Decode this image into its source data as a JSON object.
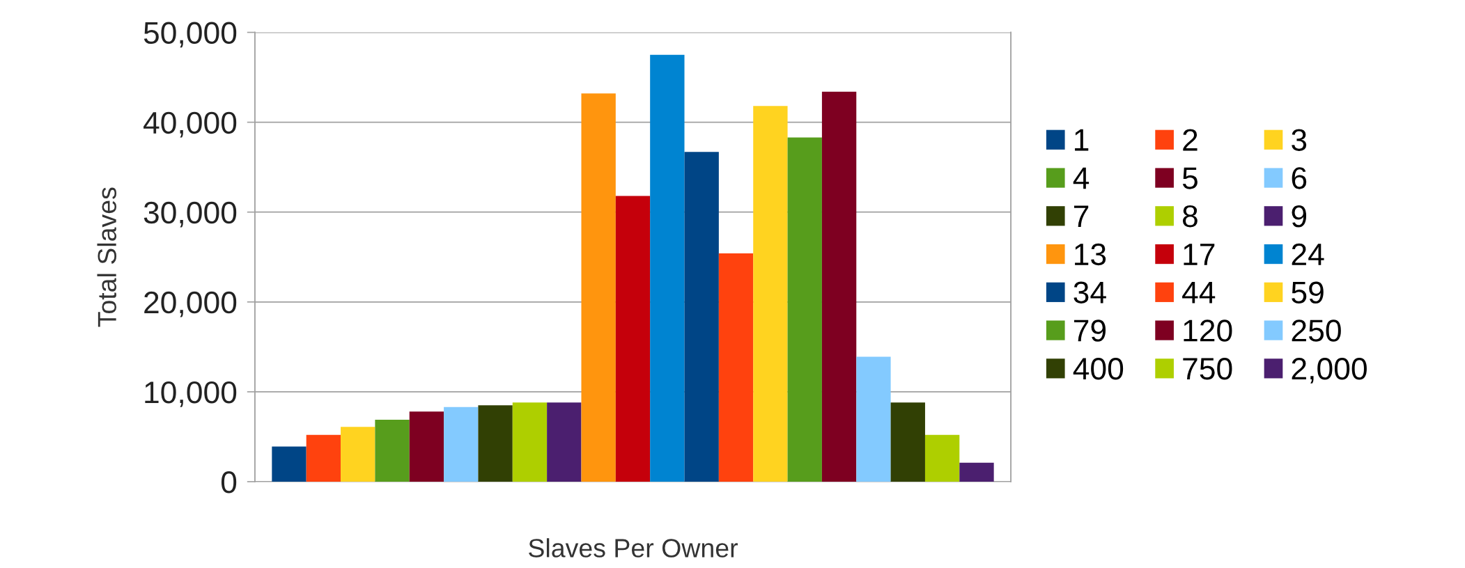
{
  "chart_data": {
    "type": "bar",
    "xlabel": "Slaves Per Owner",
    "ylabel": "Total Slaves",
    "categories": [
      null
    ],
    "series": [
      {
        "name": "1",
        "color": "#004586",
        "values": [
          3900
        ]
      },
      {
        "name": "2",
        "color": "#ff420e",
        "values": [
          5200
        ]
      },
      {
        "name": "3",
        "color": "#ffd320",
        "values": [
          6100
        ]
      },
      {
        "name": "4",
        "color": "#579d1c",
        "values": [
          6900
        ]
      },
      {
        "name": "5",
        "color": "#7e0021",
        "values": [
          7800
        ]
      },
      {
        "name": "6",
        "color": "#83caff",
        "values": [
          8300
        ]
      },
      {
        "name": "7",
        "color": "#314004",
        "values": [
          8500
        ]
      },
      {
        "name": "8",
        "color": "#aecf00",
        "values": [
          8800
        ]
      },
      {
        "name": "9",
        "color": "#4b1f6f",
        "values": [
          8800
        ]
      },
      {
        "name": "13",
        "color": "#ff950e",
        "values": [
          43200
        ]
      },
      {
        "name": "17",
        "color": "#c5000b",
        "values": [
          31800
        ]
      },
      {
        "name": "24",
        "color": "#0084d1",
        "values": [
          47500
        ]
      },
      {
        "name": "34",
        "color": "#004586",
        "values": [
          36700
        ]
      },
      {
        "name": "44",
        "color": "#ff420e",
        "values": [
          25400
        ]
      },
      {
        "name": "59",
        "color": "#ffd320",
        "values": [
          41800
        ]
      },
      {
        "name": "79",
        "color": "#579d1c",
        "values": [
          38300
        ]
      },
      {
        "name": "120",
        "color": "#7e0021",
        "values": [
          43400
        ]
      },
      {
        "name": "250",
        "color": "#83caff",
        "values": [
          13900
        ]
      },
      {
        "name": "400",
        "color": "#314004",
        "values": [
          8800
        ]
      },
      {
        "name": "750",
        "color": "#aecf00",
        "values": [
          5200
        ]
      },
      {
        "name": "2,000",
        "color": "#4b1f6f",
        "values": [
          2100
        ]
      }
    ],
    "ylim": [
      0,
      50000
    ],
    "yticks": [
      0,
      {
        "value": 10000,
        "label": "10,000"
      },
      {
        "value": 20000,
        "label": "20,000"
      },
      {
        "value": 30000,
        "label": "30,000"
      },
      {
        "value": 40000,
        "label": "40,000"
      },
      {
        "value": 50000,
        "label": "50,000"
      }
    ],
    "grid": "y",
    "legend": "right"
  }
}
